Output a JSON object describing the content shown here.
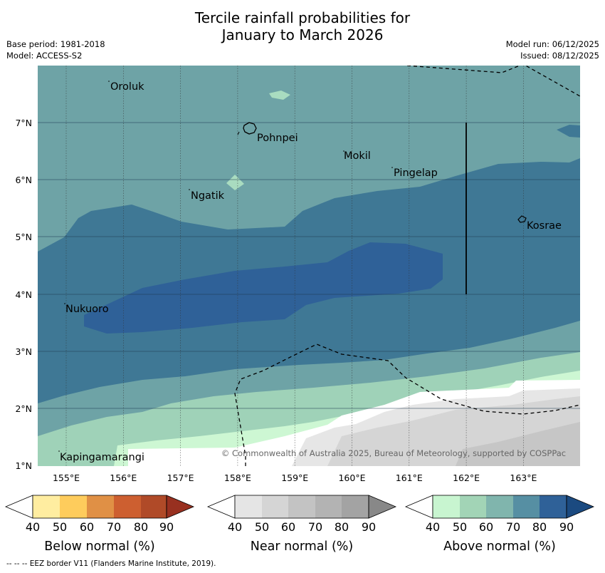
{
  "title": {
    "line1": "Tercile rainfall probabilities for",
    "line2": "January to March 2026"
  },
  "meta": {
    "base_period": "Base period: 1981-2018",
    "model": "Model: ACCESS-S2",
    "model_run": "Model run: 06/12/2025",
    "issued": "Issued: 08/12/2025"
  },
  "map": {
    "x_ticks": [
      "155°E",
      "156°E",
      "157°E",
      "158°E",
      "159°E",
      "160°E",
      "161°E",
      "162°E",
      "163°E"
    ],
    "y_ticks": [
      "1°N",
      "2°N",
      "3°N",
      "4°N",
      "5°N",
      "6°N",
      "7°N"
    ],
    "places": [
      "Oroluk",
      "Pohnpei",
      "Mokil",
      "Pingelap",
      "Ngatik",
      "Kosrae",
      "Nukuoro",
      "Kapingamarangi"
    ],
    "copyright": "© Commonwealth of Australia 2025, Bureau of Meteorology, supported by COSPPac"
  },
  "colorbars": [
    {
      "title": "Below normal (%)",
      "ticks": [
        "40",
        "50",
        "60",
        "70",
        "80",
        "90"
      ],
      "colors": [
        "#ffeda0",
        "#fecc5c",
        "#e09045",
        "#cd5f30",
        "#b04a28",
        "#983020"
      ]
    },
    {
      "title": "Near normal (%)",
      "ticks": [
        "40",
        "50",
        "60",
        "70",
        "80",
        "90"
      ],
      "colors": [
        "#e5e5e5",
        "#d5d5d5",
        "#c3c3c3",
        "#b3b3b3",
        "#a3a3a3",
        "#888888"
      ]
    },
    {
      "title": "Above normal (%)",
      "ticks": [
        "40",
        "50",
        "60",
        "70",
        "80",
        "90"
      ],
      "colors": [
        "#c8f5d0",
        "#a2d4b6",
        "#80b5ad",
        "#568fa3",
        "#2f6198",
        "#1b4a80"
      ]
    }
  ],
  "footer": "--  --  -- EEZ border V11 (Flanders Marine Institute, 2019)."
}
